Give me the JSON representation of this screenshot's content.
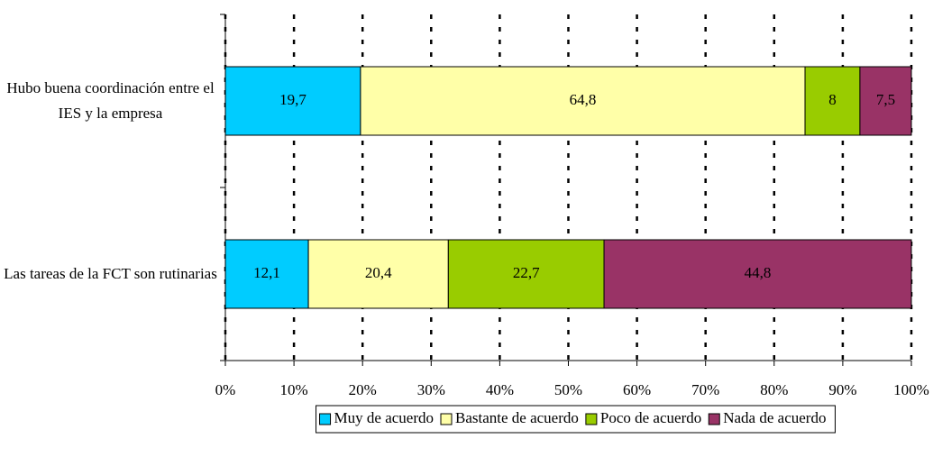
{
  "chart_data": {
    "type": "stacked-bar-horizontal",
    "categories": [
      "Hubo buena coordinación entre el IES y la empresa",
      "Las tareas de la FCT son rutinarias"
    ],
    "series": [
      {
        "name": "Muy de acuerdo",
        "color": "#00ccff",
        "values": [
          19.7,
          12.1
        ],
        "value_labels": [
          "19,7",
          "12,1"
        ]
      },
      {
        "name": "Bastante de acuerdo",
        "color": "#ffffa8",
        "values": [
          64.8,
          20.4
        ],
        "value_labels": [
          "64,8",
          "20,4"
        ]
      },
      {
        "name": "Poco de acuerdo",
        "color": "#99cc00",
        "values": [
          8,
          22.7
        ],
        "value_labels": [
          "8",
          "22,7"
        ]
      },
      {
        "name": "Nada de acuerdo",
        "color": "#993366",
        "values": [
          7.5,
          44.8
        ],
        "value_labels": [
          "7,5",
          "44,8"
        ]
      }
    ],
    "xlim": [
      0,
      100
    ],
    "xticks": [
      {
        "value": 0,
        "label": "0%"
      },
      {
        "value": 10,
        "label": "10%"
      },
      {
        "value": 20,
        "label": "20%"
      },
      {
        "value": 30,
        "label": "30%"
      },
      {
        "value": 40,
        "label": "40%"
      },
      {
        "value": 50,
        "label": "50%"
      },
      {
        "value": 60,
        "label": "60%"
      },
      {
        "value": 70,
        "label": "70%"
      },
      {
        "value": 80,
        "label": "80%"
      },
      {
        "value": 90,
        "label": "90%"
      },
      {
        "value": 100,
        "label": "100%"
      }
    ],
    "grid": true,
    "legend": "bottom"
  }
}
